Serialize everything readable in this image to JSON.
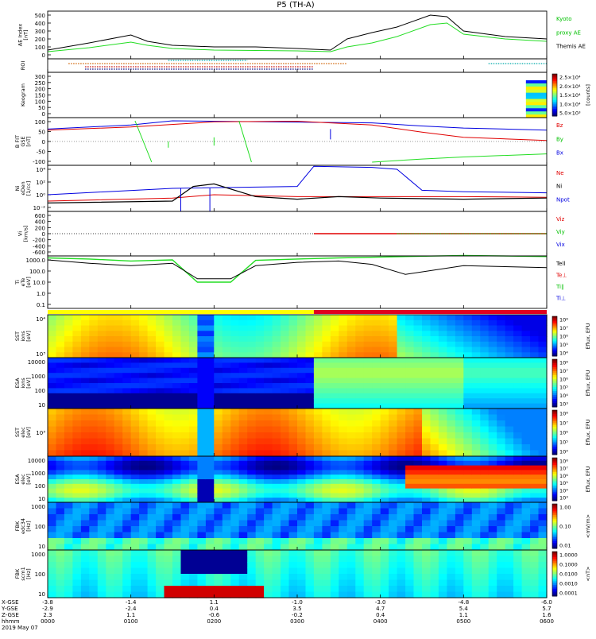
{
  "title": "P5 (TH-A)",
  "colors": {
    "black": "#000000",
    "red": "#e00000",
    "green": "#00c000",
    "blue": "#0000e0",
    "bright_green": "#22dd22",
    "yellow": "#ffff00",
    "bar_red": "#e00020"
  },
  "panels": [
    {
      "id": "ae",
      "ylabel": [
        "AE Index",
        "[nT]"
      ],
      "yticks": [
        "500",
        "400",
        "300",
        "200",
        "100",
        "0"
      ],
      "legend": [
        {
          "text": "Kyoto",
          "color": "#00c000"
        },
        {
          "text": "proxy AE",
          "color": "#00c000"
        },
        {
          "text": "Themis AE",
          "color": "#000000"
        }
      ]
    },
    {
      "id": "roi",
      "ylabel": [
        "ROI"
      ],
      "yticks": [],
      "legend": []
    },
    {
      "id": "keogram",
      "ylabel": [
        "Keogram"
      ],
      "yticks": [
        "300",
        "250",
        "200",
        "150",
        "100",
        "50",
        "0"
      ],
      "colorbar_ticks": [
        "2.5×10⁴",
        "2.0×10⁴",
        "1.5×10⁴",
        "1.0×10⁴",
        "5.0×10³"
      ],
      "colorbar_label": "[counts]",
      "legend": []
    },
    {
      "id": "bfield",
      "ylabel": [
        "B FIT",
        "GSE",
        "[nT]"
      ],
      "yticks": [
        "100",
        "50",
        "0",
        "-50",
        "-100"
      ],
      "legend": [
        {
          "text": "Bz",
          "color": "#e00000"
        },
        {
          "text": "By",
          "color": "#00c000"
        },
        {
          "text": "Bx",
          "color": "#0000e0"
        }
      ]
    },
    {
      "id": "density",
      "ylabel": [
        "Ni",
        "eDen",
        "[1/cc]"
      ],
      "yticks": [
        "10⁴",
        "10²",
        "10⁰",
        "10⁻²"
      ],
      "legend": [
        {
          "text": "Ne",
          "color": "#e00000"
        },
        {
          "text": "Ni",
          "color": "#000000"
        },
        {
          "text": "Npot",
          "color": "#0000e0"
        }
      ]
    },
    {
      "id": "velocity",
      "ylabel": [
        "Vi",
        "[km/s]"
      ],
      "yticks": [
        "600",
        "400",
        "200",
        "0",
        "-200",
        "-400",
        "-600"
      ],
      "legend": [
        {
          "text": "Viz",
          "color": "#e00000"
        },
        {
          "text": "Viy",
          "color": "#00c000"
        },
        {
          "text": "Vix",
          "color": "#0000e0"
        }
      ]
    },
    {
      "id": "temp",
      "ylabel": [
        "Ti",
        "eTe",
        "[eV]"
      ],
      "yticks": [
        "1000.0",
        "100.0",
        "10.0",
        "1.0",
        "0.1"
      ],
      "legend": [
        {
          "text": "Tell",
          "color": "#000000"
        },
        {
          "text": "Te⊥",
          "color": "#e00000"
        },
        {
          "text": "Ti∥",
          "color": "#00c000"
        },
        {
          "text": "Ti⊥",
          "color": "#0000e0"
        }
      ]
    },
    {
      "id": "sst_i",
      "ylabel": [
        "SST",
        "ions",
        "[eV]"
      ],
      "yticks": [
        "10⁴",
        "10³"
      ],
      "colorbar_ticks": [
        "10⁸",
        "10⁷",
        "10⁶",
        "10⁵",
        "10⁴"
      ],
      "colorbar_label": "Eflux, EFU"
    },
    {
      "id": "esa_i",
      "ylabel": [
        "ESA",
        "ions",
        "[eV]"
      ],
      "yticks": [
        "10000",
        "1000",
        "100",
        "10"
      ],
      "colorbar_ticks": [
        "10⁸",
        "10⁷",
        "10⁶",
        "10⁵",
        "10⁴",
        "10³"
      ],
      "colorbar_label": "Eflux, EFU"
    },
    {
      "id": "sst_e",
      "ylabel": [
        "SST",
        "elec",
        "[eV]"
      ],
      "yticks": [
        "10³"
      ],
      "colorbar_ticks": [
        "10⁸",
        "10⁷",
        "10⁶",
        "10⁵",
        "10⁴"
      ],
      "colorbar_label": "Eflux, EFU"
    },
    {
      "id": "esa_e",
      "ylabel": [
        "ESA",
        "elec",
        "[eV]"
      ],
      "yticks": [
        "10000",
        "1000",
        "100",
        "10"
      ],
      "colorbar_ticks": [
        "10⁸",
        "10⁷",
        "10⁶",
        "10⁵",
        "10⁴",
        "10³"
      ],
      "colorbar_label": "Eflux, EFU"
    },
    {
      "id": "fbk_e",
      "ylabel": [
        "FBK",
        "edc34",
        "[Hz]"
      ],
      "yticks": [
        "1000",
        "100",
        "10"
      ],
      "colorbar_ticks": [
        "1.00",
        "0.10",
        "0.01"
      ],
      "colorbar_label": "<mV/m>"
    },
    {
      "id": "fbk_b",
      "ylabel": [
        "FBK",
        "scm1",
        "[Hz]"
      ],
      "yticks": [
        "1000",
        "100",
        "10"
      ],
      "colorbar_ticks": [
        "1.0000",
        "0.1000",
        "0.0100",
        "0.0010",
        "0.0001"
      ],
      "colorbar_label": "<nT>"
    }
  ],
  "xaxis": {
    "row_labels": [
      "X-GSE",
      "Y-GSE",
      "Z-GSE",
      "hhmm",
      "2019 May 07"
    ],
    "columns": [
      {
        "x": "-3.8",
        "y": "-2.9",
        "z": "2.3",
        "t": "0000"
      },
      {
        "x": "-1.4",
        "y": "-2.4",
        "z": "1.1",
        "t": "0100"
      },
      {
        "x": "1.1",
        "y": "0.4",
        "z": "-0.6",
        "t": "0200"
      },
      {
        "x": "-1.0",
        "y": "3.5",
        "z": "-0.2",
        "t": "0300"
      },
      {
        "x": "-3.0",
        "y": "4.7",
        "z": "0.4",
        "t": "0400"
      },
      {
        "x": "-4.8",
        "y": "5.4",
        "z": "1.1",
        "t": "0500"
      },
      {
        "x": "-6.0",
        "y": "5.7",
        "z": "1.6",
        "t": "0600"
      }
    ]
  },
  "chart_data": {
    "type": "line",
    "title": "P5 (TH-A)",
    "xlabel": "hhmm",
    "x_ticks": [
      "0000",
      "0100",
      "0200",
      "0300",
      "0400",
      "0500",
      "0600"
    ],
    "series": [
      {
        "name": "Themis AE",
        "panel": "ae",
        "x": [
          0,
          0.5,
          1.0,
          1.2,
          1.5,
          2.0,
          2.5,
          3.0,
          3.4,
          3.6,
          3.9,
          4.2,
          4.6,
          4.8,
          5.0,
          5.5,
          6.0
        ],
        "values": [
          60,
          150,
          250,
          170,
          120,
          100,
          100,
          80,
          60,
          200,
          280,
          350,
          500,
          480,
          300,
          230,
          200
        ]
      },
      {
        "name": "Kyoto proxy AE",
        "panel": "ae",
        "x": [
          0,
          0.5,
          1.0,
          1.2,
          1.5,
          2.0,
          2.5,
          3.0,
          3.4,
          3.6,
          3.9,
          4.2,
          4.6,
          4.8,
          5.0,
          5.5,
          6.0
        ],
        "values": [
          40,
          90,
          160,
          120,
          80,
          60,
          55,
          50,
          40,
          100,
          150,
          230,
          380,
          400,
          260,
          200,
          170
        ]
      },
      {
        "name": "Bz",
        "panel": "bfield",
        "x": [
          0,
          1.0,
          2.0,
          3.0,
          3.9,
          4.5,
          5.0,
          6.0
        ],
        "values": [
          55,
          70,
          95,
          98,
          80,
          45,
          20,
          5
        ]
      },
      {
        "name": "Bx",
        "panel": "bfield",
        "x": [
          0,
          1.0,
          1.5,
          3.9,
          4.5,
          5.0,
          6.0
        ],
        "values": [
          60,
          80,
          100,
          90,
          75,
          65,
          55
        ]
      },
      {
        "name": "By",
        "panel": "bfield",
        "x": [
          3.9,
          4.5,
          5.0,
          6.0
        ],
        "values": [
          -100,
          -85,
          -75,
          -60
        ]
      },
      {
        "name": "Ni",
        "panel": "density",
        "x": [
          0,
          1.5,
          1.75,
          2.0,
          2.5,
          3.0,
          3.5,
          4.0,
          5.0,
          6.0
        ],
        "values": [
          0.05,
          0.1,
          20,
          50,
          0.5,
          0.2,
          0.5,
          0.3,
          0.2,
          0.3
        ]
      },
      {
        "name": "Npot",
        "panel": "density",
        "x": [
          0,
          1.5,
          3.0,
          3.2,
          3.9,
          4.2,
          4.5,
          5.0,
          6.0
        ],
        "values": [
          1,
          10,
          20,
          30000,
          20000,
          10000,
          5,
          3,
          2
        ]
      },
      {
        "name": "Ne",
        "panel": "density",
        "x": [
          0,
          1.5,
          2.0,
          3.0,
          4.0,
          5.0,
          6.0
        ],
        "values": [
          0.1,
          0.3,
          1,
          0.5,
          0.5,
          0.5,
          0.4
        ]
      },
      {
        "name": "Tell",
        "panel": "temp",
        "x": [
          0,
          0.5,
          1.0,
          1.5,
          1.8,
          2.2,
          2.5,
          3.0,
          3.5,
          3.9,
          4.3,
          5.0,
          6.0
        ],
        "values": [
          1000,
          500,
          300,
          500,
          20,
          20,
          300,
          600,
          800,
          400,
          50,
          300,
          200
        ]
      },
      {
        "name": "Ti∥",
        "panel": "temp",
        "x": [
          0,
          0.5,
          1.0,
          1.5,
          1.8,
          2.2,
          2.5,
          3.0,
          3.5,
          4.0,
          5.0,
          6.0
        ],
        "values": [
          1500,
          1200,
          800,
          1000,
          10,
          10,
          900,
          1200,
          1500,
          1800,
          2500,
          2000
        ]
      }
    ]
  }
}
